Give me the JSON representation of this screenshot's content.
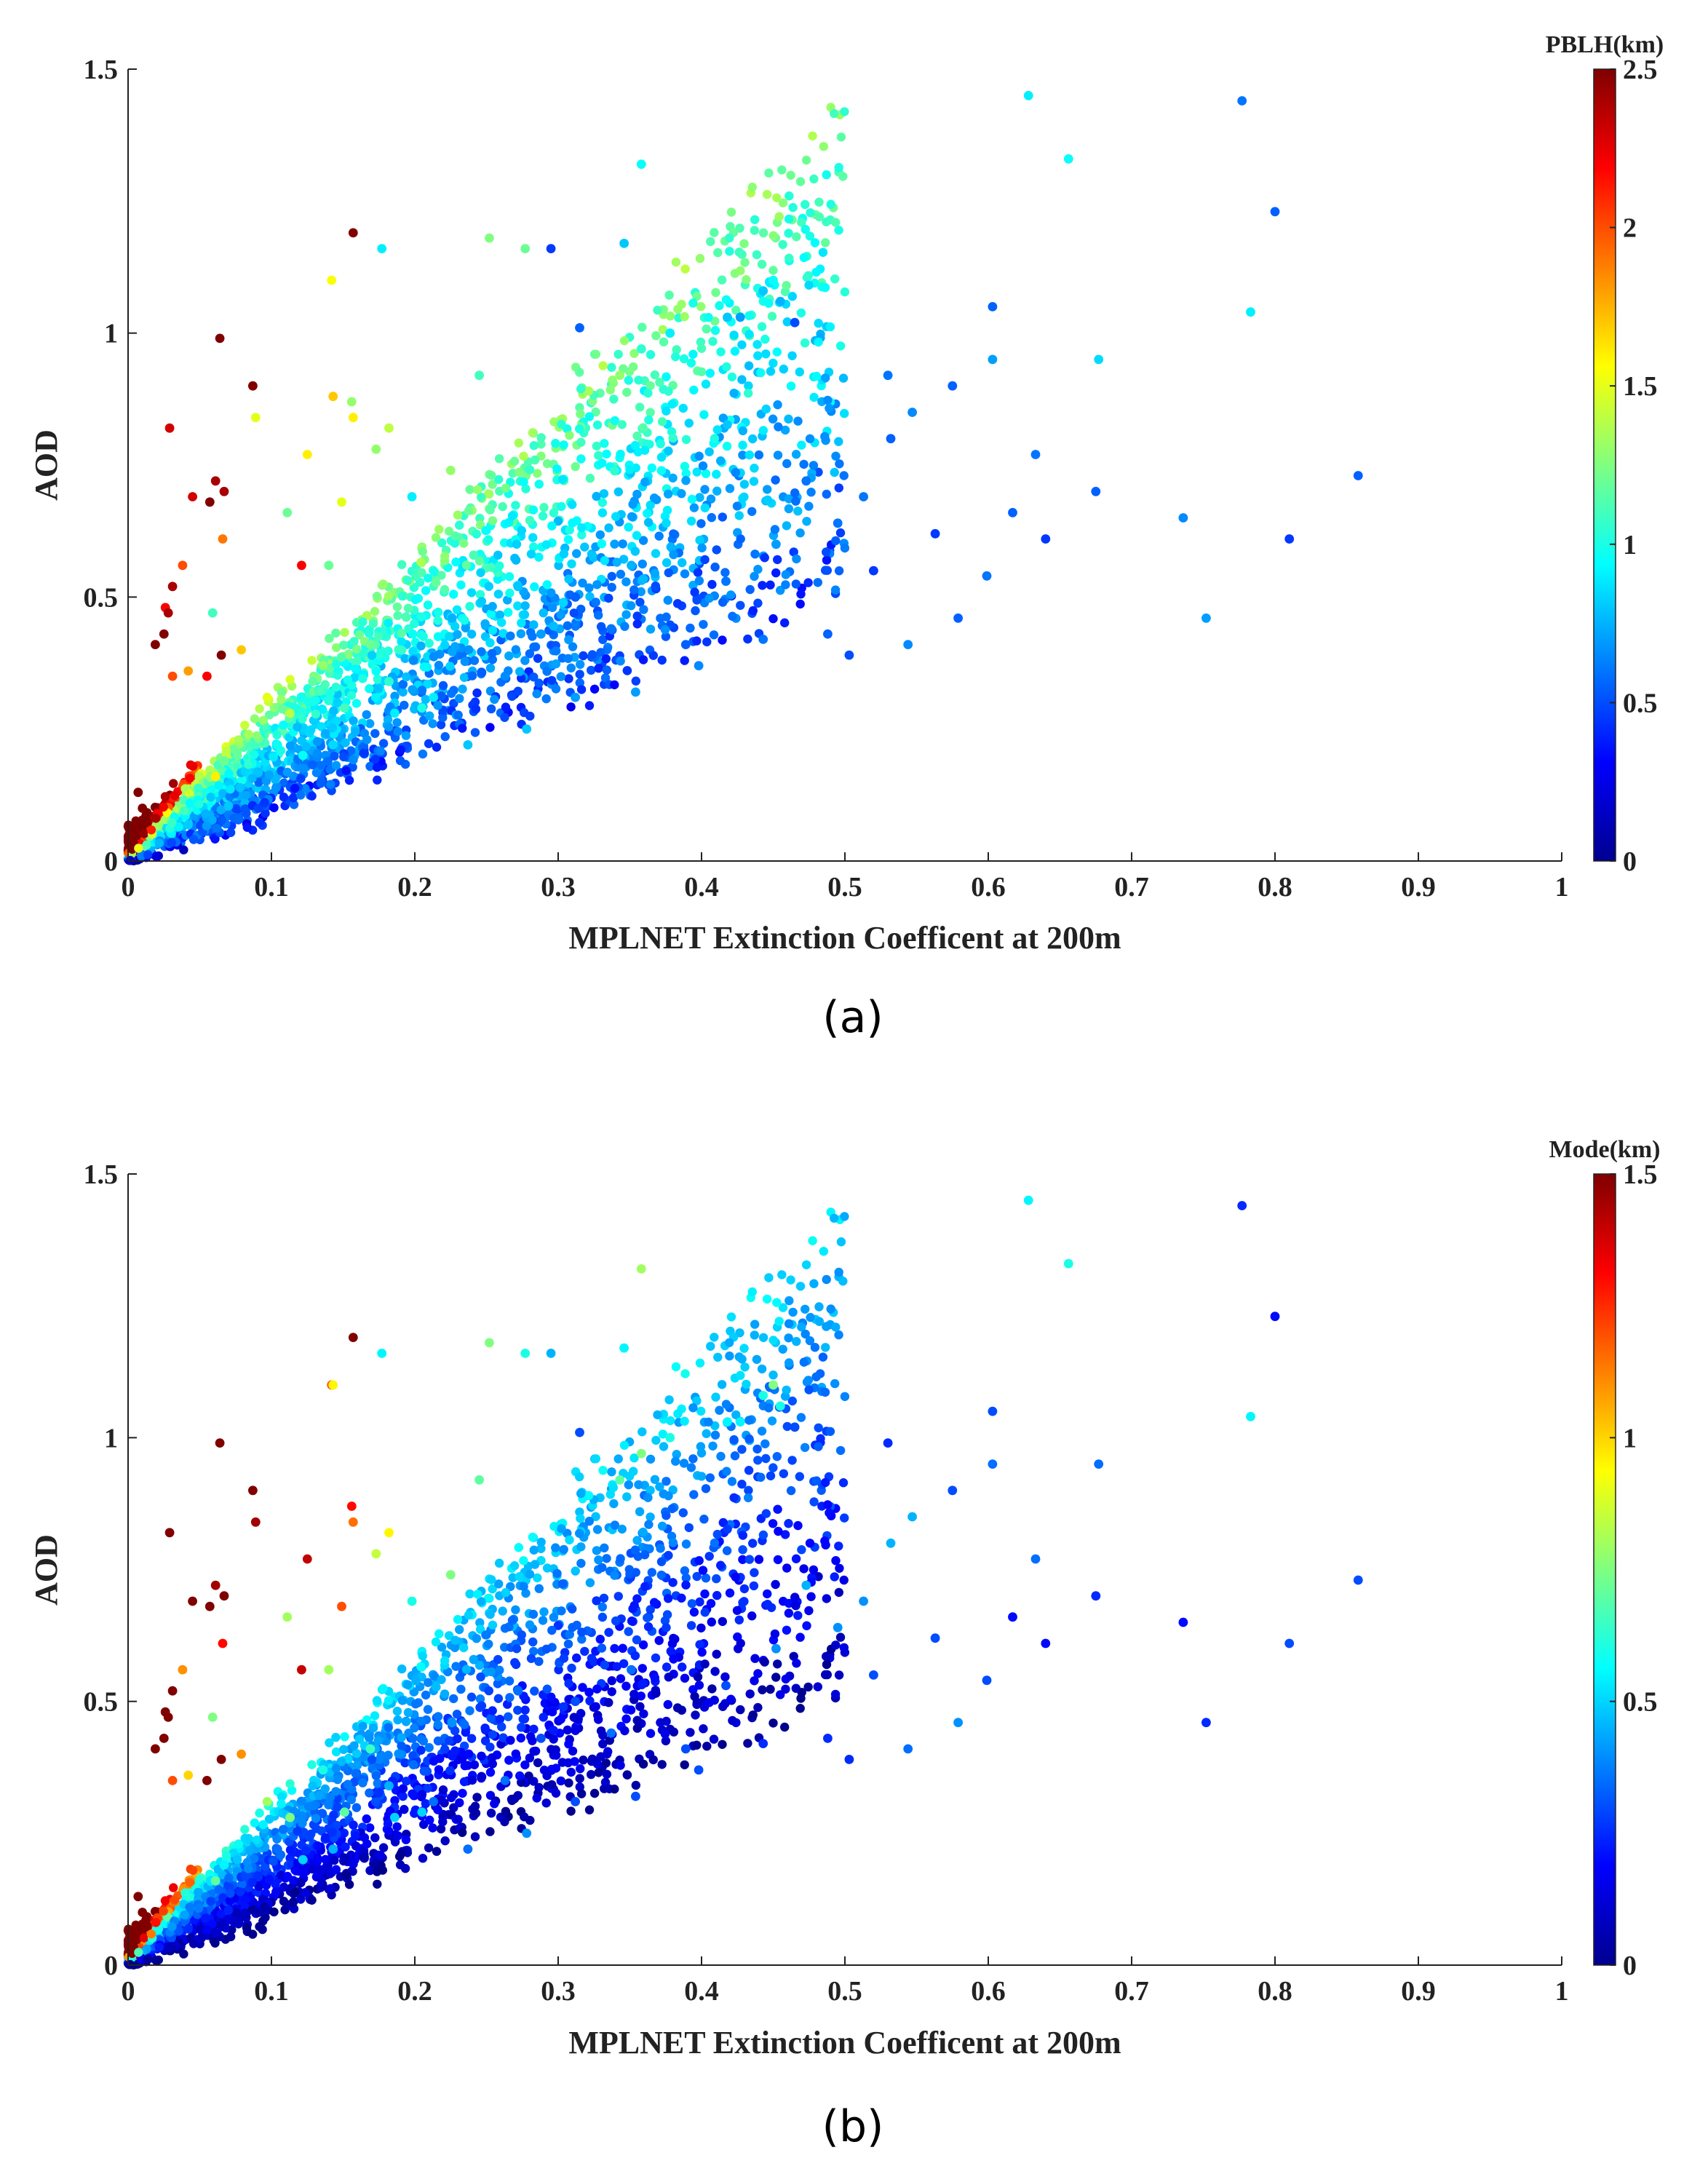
{
  "chart_data": [
    {
      "type": "scatter",
      "panel_label": "(a)",
      "xlabel": "MPLNET Extinction Coefficent at 200m",
      "ylabel": "AOD",
      "xlim": [
        0,
        1
      ],
      "ylim": [
        0,
        1.5
      ],
      "x_ticks": [
        0,
        0.1,
        0.2,
        0.3,
        0.4,
        0.5,
        0.6,
        0.7,
        0.8,
        0.9,
        1
      ],
      "y_ticks": [
        0,
        0.5,
        1,
        1.5
      ],
      "x_tick_labels": [
        "0",
        "0.1",
        "0.2",
        "0.3",
        "0.4",
        "0.5",
        "0.6",
        "0.7",
        "0.8",
        "0.9",
        "1"
      ],
      "y_tick_labels": [
        "0",
        "0.5",
        "1",
        "1.5"
      ],
      "grid": false,
      "colorbar": {
        "label": "PBLH(km)",
        "min": 0,
        "max": 2.5,
        "ticks": [
          0,
          0.5,
          1,
          1.5,
          2,
          2.5
        ],
        "tick_labels": [
          "0",
          "0.5",
          "1",
          "1.5",
          "2",
          "2.5"
        ],
        "colormap": "jet"
      },
      "points_x": [
        0.628,
        0.777,
        0.656,
        0.358,
        0.8,
        0.157,
        0.252,
        0.177,
        0.277,
        0.295,
        0.346,
        0.142,
        0.45,
        0.443,
        0.427,
        0.783,
        0.455,
        0.603,
        0.465,
        0.418,
        0.315,
        0.064,
        0.358,
        0.378,
        0.603,
        0.677,
        0.245,
        0.343,
        0.087,
        0.53,
        0.575,
        0.633,
        0.736,
        0.858,
        0.81,
        0.752,
        0.675,
        0.617,
        0.64,
        0.029,
        0.061,
        0.031,
        0.045,
        0.057,
        0.067,
        0.065,
        0.042,
        0.055,
        0.019,
        0.026,
        0.031,
        0.007,
        0.01,
        0.156,
        0.089,
        0.125,
        0.143,
        0.157,
        0.149,
        0.14,
        0.182,
        0.225,
        0.173,
        0.111,
        0.198,
        0.121,
        0.066,
        0.059,
        0.079,
        0.038,
        0.028,
        0.025,
        0.532,
        0.547,
        0.513,
        0.563,
        0.579,
        0.495,
        0.52,
        0.544,
        0.599,
        0.452,
        0.473,
        0.503,
        0.351,
        0.389,
        0.417,
        0.312,
        0.337,
        0.272,
        0.226,
        0.199,
        0.263,
        0.288,
        0.213,
        0.169,
        0.182,
        0.136,
        0.113,
        0.151,
        0.097,
        0.084,
        0.067,
        0.061,
        0.122,
        0.143,
        0.237,
        0.186,
        0.205,
        0.278,
        0.312,
        0.354,
        0.398,
        0.443,
        0.488
      ],
      "points_y": [
        1.45,
        1.44,
        1.33,
        1.32,
        1.23,
        1.19,
        1.18,
        1.16,
        1.16,
        1.16,
        1.17,
        1.1,
        1.1,
        1.08,
        1.03,
        1.04,
        1.06,
        1.05,
        1.02,
        1.03,
        1.01,
        0.99,
        0.97,
        1.0,
        0.95,
        0.95,
        0.92,
        0.92,
        0.9,
        0.92,
        0.9,
        0.77,
        0.65,
        0.73,
        0.61,
        0.46,
        0.7,
        0.66,
        0.61,
        0.82,
        0.72,
        0.52,
        0.69,
        0.68,
        0.7,
        0.39,
        0.36,
        0.35,
        0.41,
        0.48,
        0.35,
        0.13,
        0.1,
        0.87,
        0.84,
        0.77,
        0.88,
        0.84,
        0.68,
        0.56,
        0.82,
        0.74,
        0.78,
        0.66,
        0.69,
        0.56,
        0.61,
        0.47,
        0.4,
        0.56,
        0.47,
        0.43,
        0.8,
        0.85,
        0.69,
        0.62,
        0.46,
        0.64,
        0.55,
        0.41,
        0.54,
        0.6,
        0.72,
        0.39,
        0.56,
        0.41,
        0.53,
        0.5,
        0.44,
        0.52,
        0.46,
        0.38,
        0.35,
        0.43,
        0.31,
        0.41,
        0.34,
        0.37,
        0.28,
        0.29,
        0.31,
        0.24,
        0.19,
        0.16,
        0.2,
        0.22,
        0.22,
        0.28,
        0.29,
        0.25,
        0.31,
        0.32,
        0.37,
        0.42,
        0.43
      ],
      "points_c": [
        0.9,
        0.6,
        0.95,
        0.95,
        0.55,
        2.5,
        1.25,
        0.9,
        1.2,
        0.45,
        0.8,
        1.55,
        0.95,
        0.8,
        0.7,
        0.9,
        0.75,
        0.55,
        0.5,
        0.8,
        0.55,
        2.5,
        1.05,
        0.9,
        0.7,
        0.85,
        1.1,
        1.3,
        2.5,
        0.6,
        0.55,
        0.6,
        0.65,
        0.55,
        0.45,
        0.7,
        0.55,
        0.55,
        0.45,
        2.3,
        2.4,
        2.4,
        2.3,
        2.5,
        2.4,
        2.5,
        1.8,
        2.2,
        2.5,
        2.2,
        2.0,
        2.5,
        2.5,
        1.3,
        1.5,
        1.6,
        1.7,
        1.6,
        1.5,
        1.2,
        1.4,
        1.3,
        1.3,
        1.2,
        0.9,
        2.2,
        1.9,
        1.1,
        1.7,
        2.0,
        2.4,
        2.5,
        0.55,
        0.65,
        0.6,
        0.45,
        0.55,
        0.6,
        0.45,
        0.65,
        0.6,
        0.7,
        0.6,
        0.5,
        0.75,
        0.55,
        0.6,
        0.55,
        0.6,
        0.8,
        0.75,
        0.65,
        0.65,
        0.7,
        0.9,
        1.2,
        1.05,
        1.3,
        1.4,
        1.1,
        1.5,
        1.35,
        1.2,
        1.6,
        0.95,
        0.85,
        0.8,
        0.9,
        1.0,
        0.8,
        0.7,
        0.7,
        0.65,
        0.6,
        0.55
      ]
    },
    {
      "type": "scatter",
      "panel_label": "(b)",
      "xlabel": "MPLNET Extinction Coefficent at 200m",
      "ylabel": "AOD",
      "xlim": [
        0,
        1
      ],
      "ylim": [
        0,
        1.5
      ],
      "x_ticks": [
        0,
        0.1,
        0.2,
        0.3,
        0.4,
        0.5,
        0.6,
        0.7,
        0.8,
        0.9,
        1
      ],
      "y_ticks": [
        0,
        0.5,
        1,
        1.5
      ],
      "x_tick_labels": [
        "0",
        "0.1",
        "0.2",
        "0.3",
        "0.4",
        "0.5",
        "0.6",
        "0.7",
        "0.8",
        "0.9",
        "1"
      ],
      "y_tick_labels": [
        "0",
        "0.5",
        "1",
        "1.5"
      ],
      "grid": false,
      "colorbar": {
        "label": "Mode(km)",
        "min": 0,
        "max": 1.5,
        "ticks": [
          0,
          0.5,
          1,
          1.5
        ],
        "tick_labels": [
          "0",
          "0.5",
          "1",
          "1.5"
        ],
        "colormap": "jet"
      },
      "points_x": [
        0.628,
        0.777,
        0.656,
        0.358,
        0.8,
        0.157,
        0.252,
        0.177,
        0.277,
        0.295,
        0.346,
        0.142,
        0.45,
        0.443,
        0.427,
        0.783,
        0.455,
        0.603,
        0.465,
        0.418,
        0.315,
        0.064,
        0.358,
        0.378,
        0.603,
        0.677,
        0.245,
        0.343,
        0.087,
        0.53,
        0.575,
        0.633,
        0.736,
        0.858,
        0.81,
        0.752,
        0.675,
        0.617,
        0.64,
        0.029,
        0.061,
        0.031,
        0.045,
        0.057,
        0.067,
        0.065,
        0.042,
        0.055,
        0.019,
        0.026,
        0.031,
        0.007,
        0.01,
        0.156,
        0.089,
        0.125,
        0.143,
        0.157,
        0.149,
        0.14,
        0.182,
        0.225,
        0.173,
        0.111,
        0.198,
        0.121,
        0.066,
        0.059,
        0.079,
        0.038,
        0.028,
        0.025,
        0.532,
        0.547,
        0.513,
        0.563,
        0.579,
        0.495,
        0.52,
        0.544,
        0.599,
        0.452,
        0.473,
        0.503,
        0.351,
        0.389,
        0.417,
        0.312,
        0.337,
        0.272,
        0.226,
        0.199,
        0.263,
        0.288,
        0.213,
        0.169,
        0.182,
        0.136,
        0.113,
        0.151,
        0.097,
        0.084,
        0.067,
        0.061,
        0.122,
        0.143,
        0.237,
        0.186,
        0.205,
        0.278,
        0.312,
        0.354,
        0.398,
        0.443,
        0.488
      ],
      "points_y": [
        1.45,
        1.44,
        1.33,
        1.32,
        1.23,
        1.19,
        1.18,
        1.16,
        1.16,
        1.16,
        1.17,
        1.1,
        1.1,
        1.08,
        1.03,
        1.04,
        1.06,
        1.05,
        1.02,
        1.03,
        1.01,
        0.99,
        0.97,
        1.0,
        0.95,
        0.95,
        0.92,
        0.92,
        0.9,
        0.99,
        0.9,
        0.77,
        0.65,
        0.73,
        0.61,
        0.46,
        0.7,
        0.66,
        0.61,
        0.82,
        0.72,
        0.52,
        0.69,
        0.68,
        0.7,
        0.39,
        0.36,
        0.35,
        0.41,
        0.48,
        0.35,
        0.13,
        0.1,
        0.87,
        0.84,
        0.77,
        1.1,
        0.84,
        0.68,
        0.56,
        0.82,
        0.74,
        0.78,
        0.66,
        0.69,
        0.56,
        0.61,
        0.47,
        0.4,
        0.56,
        0.47,
        0.43,
        0.8,
        0.85,
        0.69,
        0.62,
        0.46,
        0.64,
        0.55,
        0.41,
        0.54,
        0.6,
        0.72,
        0.39,
        0.56,
        0.41,
        0.53,
        0.5,
        0.44,
        0.52,
        0.46,
        0.38,
        0.35,
        0.43,
        0.31,
        0.41,
        0.34,
        0.37,
        0.28,
        0.29,
        0.31,
        0.24,
        0.19,
        0.16,
        0.2,
        0.22,
        0.22,
        0.28,
        0.29,
        0.25,
        0.31,
        0.32,
        0.37,
        0.42,
        0.43
      ],
      "points_c": [
        0.55,
        0.25,
        0.6,
        0.8,
        0.2,
        1.5,
        0.75,
        0.55,
        0.6,
        0.45,
        0.55,
        1.2,
        0.75,
        0.6,
        0.55,
        0.55,
        0.6,
        0.3,
        0.3,
        0.55,
        0.3,
        1.5,
        0.75,
        0.6,
        0.35,
        0.35,
        0.7,
        0.7,
        1.5,
        0.25,
        0.3,
        0.35,
        0.2,
        0.3,
        0.3,
        0.25,
        0.25,
        0.2,
        0.2,
        1.5,
        1.45,
        1.5,
        1.5,
        1.5,
        1.5,
        1.5,
        1.0,
        1.5,
        1.5,
        1.5,
        1.2,
        1.5,
        1.5,
        1.3,
        1.45,
        1.4,
        0.95,
        1.15,
        1.2,
        0.8,
        0.95,
        0.75,
        0.85,
        0.8,
        0.6,
        1.4,
        1.3,
        0.75,
        1.1,
        1.1,
        1.5,
        1.5,
        0.45,
        0.45,
        0.4,
        0.3,
        0.4,
        0.4,
        0.3,
        0.35,
        0.3,
        0.4,
        0.45,
        0.25,
        0.35,
        0.3,
        0.3,
        0.3,
        0.35,
        0.35,
        0.4,
        0.35,
        0.35,
        0.3,
        0.35,
        0.65,
        0.45,
        0.6,
        0.75,
        0.7,
        0.8,
        0.5,
        0.55,
        0.7,
        0.5,
        0.45,
        0.35,
        0.5,
        0.5,
        0.4,
        0.3,
        0.3,
        0.3,
        0.25,
        0.25
      ]
    }
  ]
}
